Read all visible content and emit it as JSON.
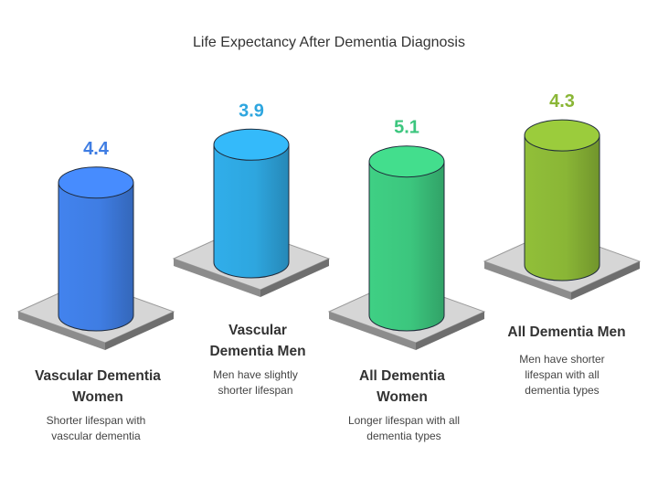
{
  "chart_data": {
    "type": "bar",
    "title": "Life Expectancy After Dementia Diagnosis",
    "categories": [
      "Vascular Dementia Women",
      "Vascular Dementia Men",
      "All Dementia Women",
      "All Dementia Men"
    ],
    "values": [
      4.4,
      3.9,
      5.1,
      4.3
    ],
    "value_labels": [
      "4.4",
      "3.9",
      "5.1",
      "4.3"
    ],
    "descriptions": [
      "Shorter lifespan with vascular dementia",
      "Men have slightly shorter lifespan",
      "Longer lifespan with all dementia types",
      "Men have shorter lifespan with all dementia types"
    ],
    "colors": [
      "#3f7de3",
      "#2ea6df",
      "#3cc67e",
      "#8ab636"
    ],
    "xlabel": "",
    "ylabel": ""
  }
}
